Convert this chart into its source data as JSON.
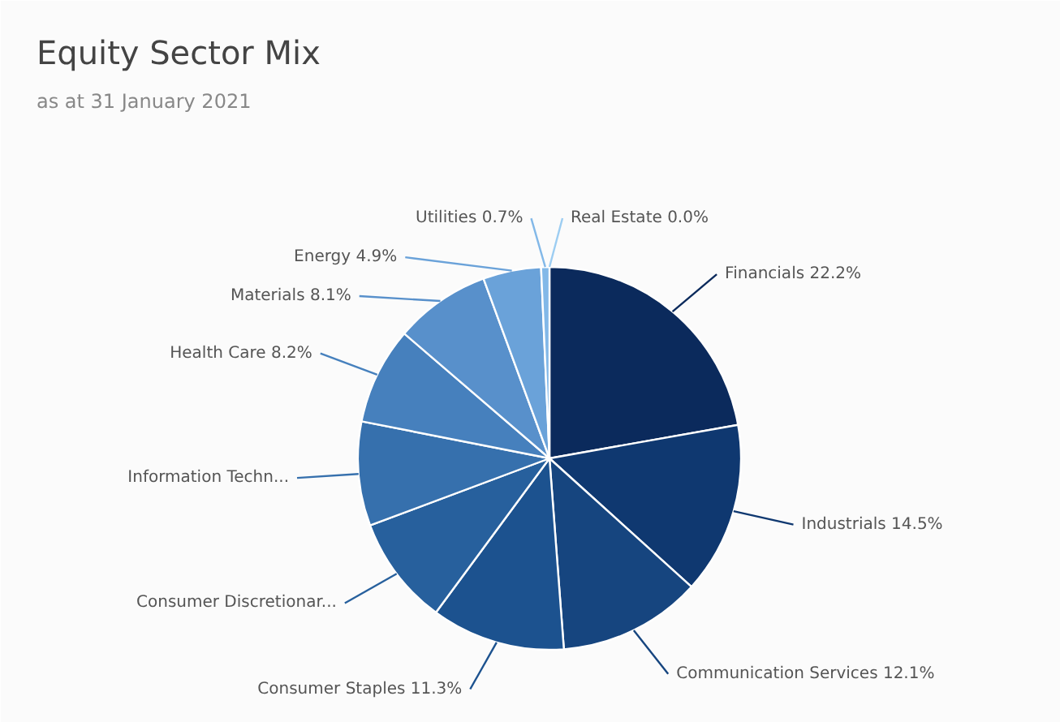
{
  "chart_data": {
    "type": "pie",
    "title": "Equity Sector Mix",
    "subtitle": "as at 31 January 2021",
    "categories": [
      "Financials",
      "Industrials",
      "Communication Services",
      "Consumer Staples",
      "Consumer Discretionar...",
      "Information Techn...",
      "Health Care",
      "Materials",
      "Energy",
      "Utilities",
      "Real Estate"
    ],
    "values": [
      22.2,
      14.5,
      12.1,
      11.3,
      9.2,
      8.8,
      8.2,
      8.1,
      4.9,
      0.7,
      0.0
    ],
    "value_labels": [
      "22.2%",
      "14.5%",
      "12.1%",
      "11.3%",
      null,
      null,
      "8.2%",
      "8.1%",
      "4.9%",
      "0.7%",
      "0.0%"
    ],
    "colors": [
      "#0b2a5c",
      "#0f3870",
      "#16457f",
      "#1c528f",
      "#27609d",
      "#3670ad",
      "#4680bd",
      "#5890cb",
      "#6aa2d9",
      "#82b8e8",
      "#9ccdf2"
    ]
  }
}
